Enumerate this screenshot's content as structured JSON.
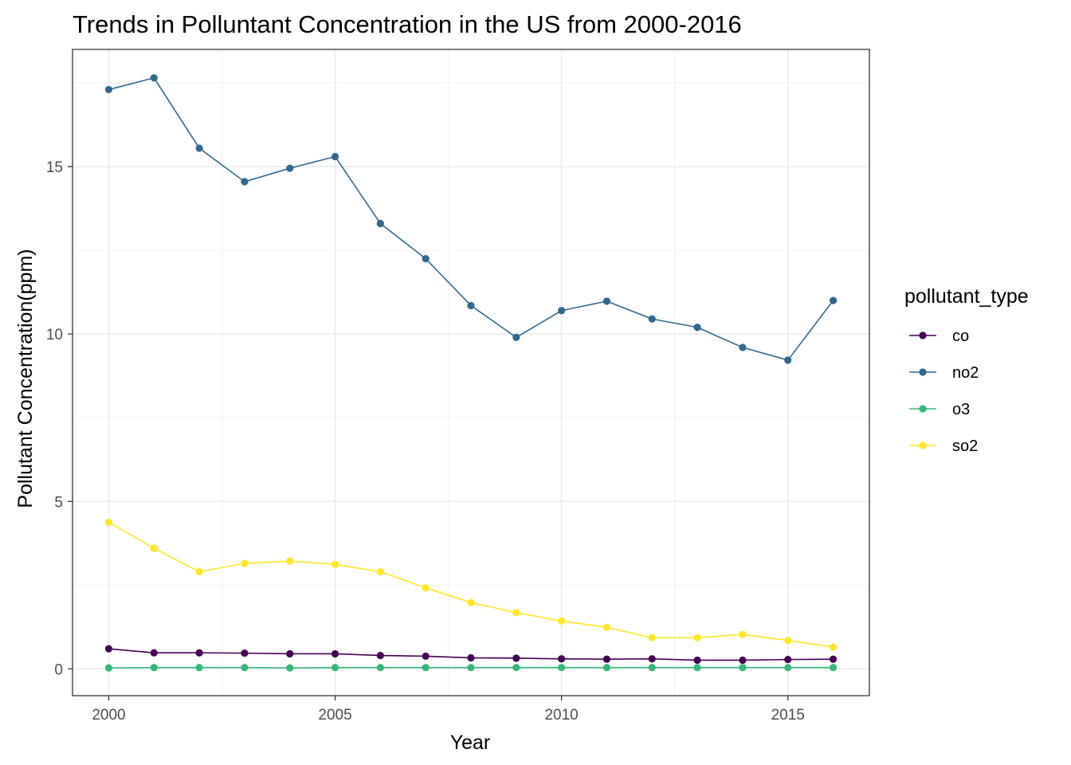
{
  "chart_data": {
    "type": "line",
    "title": "Trends in Polluntant Concentration in the US from 2000-2016",
    "xlabel": "Year",
    "ylabel": "Pollutant Concentration(ppm)",
    "x": [
      2000,
      2001,
      2002,
      2003,
      2004,
      2005,
      2006,
      2007,
      2008,
      2009,
      2010,
      2011,
      2012,
      2013,
      2014,
      2015,
      2016
    ],
    "xlim": [
      1999.2,
      2016.8
    ],
    "ylim": [
      -0.8,
      18.5
    ],
    "xticks": [
      2000,
      2005,
      2010,
      2015
    ],
    "xtick_labels": [
      "2000",
      "2005",
      "2010",
      "2015"
    ],
    "yticks": [
      0,
      5,
      10,
      15
    ],
    "ytick_labels": [
      "0",
      "5",
      "10",
      "15"
    ],
    "grid": true,
    "legend_title": "pollutant_type",
    "legend_position": "right",
    "series": [
      {
        "name": "co",
        "color": "#440154",
        "values": [
          0.6,
          0.48,
          0.48,
          0.47,
          0.45,
          0.45,
          0.4,
          0.38,
          0.33,
          0.32,
          0.3,
          0.29,
          0.3,
          0.26,
          0.26,
          0.28,
          0.29
        ]
      },
      {
        "name": "no2",
        "color": "#31688e",
        "values": [
          17.3,
          17.65,
          15.55,
          14.55,
          14.95,
          15.3,
          13.3,
          12.25,
          10.85,
          9.9,
          10.7,
          10.98,
          10.45,
          10.2,
          9.6,
          9.22,
          11.0
        ]
      },
      {
        "name": "o3",
        "color": "#35b779",
        "values": [
          0.03,
          0.04,
          0.04,
          0.04,
          0.03,
          0.04,
          0.04,
          0.04,
          0.04,
          0.04,
          0.04,
          0.04,
          0.04,
          0.04,
          0.04,
          0.04,
          0.04
        ]
      },
      {
        "name": "so2",
        "color": "#fde725",
        "values": [
          4.38,
          3.6,
          2.9,
          3.15,
          3.22,
          3.12,
          2.9,
          2.42,
          1.98,
          1.68,
          1.43,
          1.24,
          0.93,
          0.93,
          1.03,
          0.85,
          0.65
        ]
      }
    ]
  }
}
